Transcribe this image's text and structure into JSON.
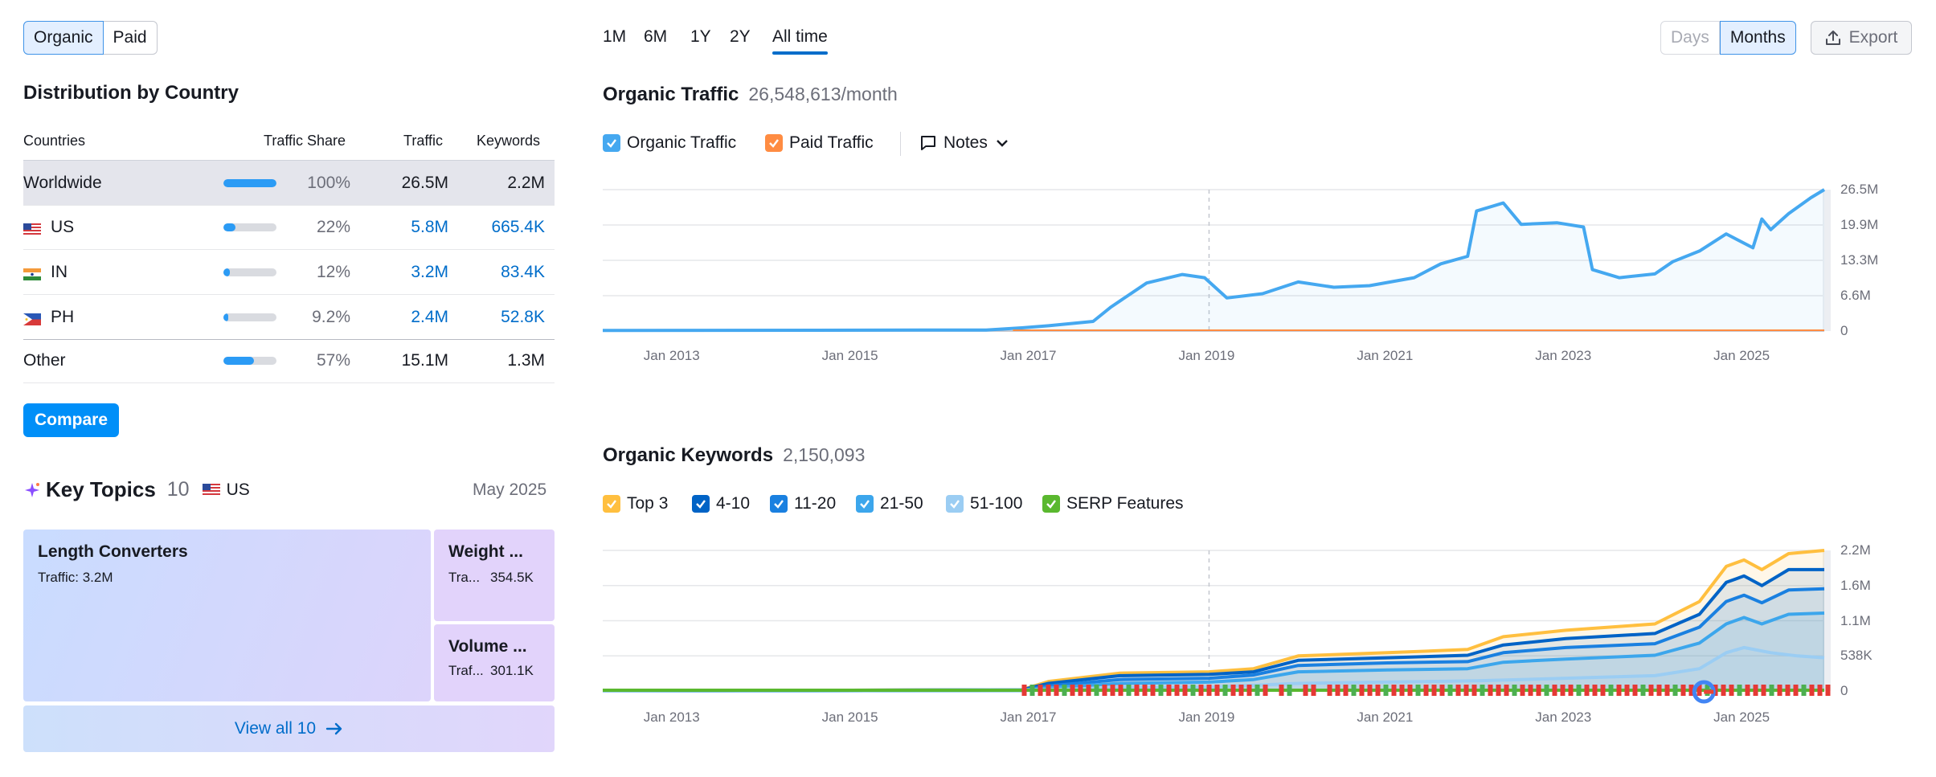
{
  "left": {
    "type_tabs": [
      "Organic",
      "Paid"
    ],
    "distribution_title": "Distribution by Country",
    "table_headers": {
      "countries": "Countries",
      "share": "Traffic Share",
      "traffic": "Traffic",
      "keywords": "Keywords"
    },
    "rows": [
      {
        "name": "Worldwide",
        "share": "100%",
        "share_value": 1.0,
        "traffic": "26.5M",
        "keywords": "2.2M"
      },
      {
        "name": "US",
        "share": "22%",
        "share_value": 0.22,
        "traffic": "5.8M",
        "keywords": "665.4K"
      },
      {
        "name": "IN",
        "share": "12%",
        "share_value": 0.12,
        "traffic": "3.2M",
        "keywords": "83.4K"
      },
      {
        "name": "PH",
        "share": "9.2%",
        "share_value": 0.092,
        "traffic": "2.4M",
        "keywords": "52.8K"
      },
      {
        "name": "Other",
        "share": "57%",
        "share_value": 0.57,
        "traffic": "15.1M",
        "keywords": "1.3M"
      }
    ],
    "compare_label": "Compare",
    "topics": {
      "title": "Key Topics",
      "count": "10",
      "country": "US",
      "date": "May 2025",
      "tiles": [
        {
          "title": "Length Converters",
          "sub": "Traffic: 3.2M"
        },
        {
          "title": "Weight ...",
          "sub_label": "Tra...",
          "sub_value": "354.5K"
        },
        {
          "title": "Volume ...",
          "sub_label": "Traf...",
          "sub_value": "301.1K"
        }
      ],
      "view_all": "View all 10"
    }
  },
  "right": {
    "ranges": [
      "1M",
      "6M",
      "1Y",
      "2Y",
      "All time"
    ],
    "selected_range": "All time",
    "granularity": [
      "Days",
      "Months"
    ],
    "export_label": "Export",
    "traffic_title": "Organic Traffic",
    "traffic_value": "26,548,613/month",
    "traffic_legend": [
      "Organic Traffic",
      "Paid Traffic"
    ],
    "notes_label": "Notes",
    "keywords_title": "Organic Keywords",
    "keywords_value": "2,150,093",
    "keywords_legend": [
      "Top 3",
      "4-10",
      "11-20",
      "21-50",
      "51-100",
      "SERP Features"
    ],
    "x_ticks": [
      "Jan 2013",
      "Jan 2015",
      "Jan 2017",
      "Jan 2019",
      "Jan 2021",
      "Jan 2023",
      "Jan 2025"
    ],
    "traffic_y_ticks": [
      "26.5M",
      "19.9M",
      "13.3M",
      "6.6M",
      "0"
    ],
    "keywords_y_ticks": [
      "2.2M",
      "1.6M",
      "1.1M",
      "538K",
      "0"
    ]
  },
  "colors": {
    "organic": "#45a8f0",
    "paid": "#ff8c42",
    "top3": "#ffbf3f",
    "k4_10": "#0063c6",
    "k11_20": "#1a80e0",
    "k21_50": "#3ca6ec",
    "k51_100": "#9bcdf3",
    "serp": "#5ab82f",
    "accent": "#008ff8"
  },
  "chart_data": [
    {
      "type": "line",
      "title": "Organic Traffic",
      "ylim": [
        0,
        26500000
      ],
      "series": [
        {
          "name": "Organic Traffic",
          "points": [
            [
              2012.2,
              0.1
            ],
            [
              2016.5,
              0.2
            ],
            [
              2016.9,
              0.6
            ],
            [
              2017.2,
              1.0
            ],
            [
              2017.7,
              1.8
            ],
            [
              2017.9,
              4.5
            ],
            [
              2018.3,
              9.0
            ],
            [
              2018.7,
              10.6
            ],
            [
              2018.95,
              10.0
            ],
            [
              2019.2,
              6.2
            ],
            [
              2019.6,
              7.0
            ],
            [
              2020.0,
              9.2
            ],
            [
              2020.4,
              8.2
            ],
            [
              2020.8,
              8.5
            ],
            [
              2021.3,
              10.0
            ],
            [
              2021.6,
              12.6
            ],
            [
              2021.9,
              14.0
            ],
            [
              2022.0,
              22.5
            ],
            [
              2022.3,
              24.0
            ],
            [
              2022.5,
              20.0
            ],
            [
              2022.9,
              20.3
            ],
            [
              2023.2,
              19.5
            ],
            [
              2023.3,
              11.5
            ],
            [
              2023.6,
              10.0
            ],
            [
              2024.0,
              10.7
            ],
            [
              2024.2,
              13.0
            ],
            [
              2024.5,
              15.0
            ],
            [
              2024.8,
              18.2
            ],
            [
              2025.1,
              15.6
            ],
            [
              2025.2,
              21.0
            ],
            [
              2025.3,
              19.0
            ],
            [
              2025.5,
              22.0
            ],
            [
              2025.75,
              25.0
            ],
            [
              2025.9,
              26.5
            ]
          ]
        },
        {
          "name": "Paid Traffic",
          "points": [
            [
              2012.2,
              0
            ],
            [
              2025.9,
              0
            ]
          ]
        }
      ]
    },
    {
      "type": "area",
      "title": "Organic Keywords",
      "ylim": [
        0,
        2200000
      ],
      "series": [
        {
          "name": "Top 3",
          "points": [
            [
              2012.2,
              0.0
            ],
            [
              2016.9,
              0.02
            ],
            [
              2017.2,
              0.15
            ],
            [
              2018.0,
              0.28
            ],
            [
              2019.0,
              0.3
            ],
            [
              2019.5,
              0.35
            ],
            [
              2020.0,
              0.55
            ],
            [
              2021.0,
              0.6
            ],
            [
              2021.9,
              0.65
            ],
            [
              2022.3,
              0.85
            ],
            [
              2023.0,
              0.95
            ],
            [
              2024.0,
              1.05
            ],
            [
              2024.5,
              1.4
            ],
            [
              2024.8,
              1.95
            ],
            [
              2025.0,
              2.05
            ],
            [
              2025.2,
              1.9
            ],
            [
              2025.5,
              2.15
            ],
            [
              2025.9,
              2.2
            ]
          ]
        },
        {
          "name": "4-10",
          "points": [
            [
              2012.2,
              0.0
            ],
            [
              2016.9,
              0.02
            ],
            [
              2017.2,
              0.12
            ],
            [
              2018.0,
              0.24
            ],
            [
              2019.0,
              0.26
            ],
            [
              2019.5,
              0.3
            ],
            [
              2020.0,
              0.48
            ],
            [
              2021.0,
              0.52
            ],
            [
              2021.9,
              0.56
            ],
            [
              2022.3,
              0.72
            ],
            [
              2023.0,
              0.82
            ],
            [
              2024.0,
              0.9
            ],
            [
              2024.5,
              1.2
            ],
            [
              2024.8,
              1.7
            ],
            [
              2025.0,
              1.8
            ],
            [
              2025.2,
              1.65
            ],
            [
              2025.5,
              1.9
            ],
            [
              2025.9,
              1.9
            ]
          ]
        },
        {
          "name": "11-20",
          "points": [
            [
              2012.2,
              0.0
            ],
            [
              2016.9,
              0.01
            ],
            [
              2017.2,
              0.08
            ],
            [
              2018.0,
              0.18
            ],
            [
              2019.0,
              0.2
            ],
            [
              2019.5,
              0.25
            ],
            [
              2020.0,
              0.4
            ],
            [
              2021.0,
              0.44
            ],
            [
              2021.9,
              0.46
            ],
            [
              2022.3,
              0.6
            ],
            [
              2023.0,
              0.68
            ],
            [
              2024.0,
              0.74
            ],
            [
              2024.5,
              1.0
            ],
            [
              2024.8,
              1.4
            ],
            [
              2025.0,
              1.5
            ],
            [
              2025.2,
              1.38
            ],
            [
              2025.5,
              1.58
            ],
            [
              2025.9,
              1.6
            ]
          ]
        },
        {
          "name": "21-50",
          "points": [
            [
              2012.2,
              0.0
            ],
            [
              2016.9,
              0.01
            ],
            [
              2017.2,
              0.05
            ],
            [
              2018.0,
              0.12
            ],
            [
              2019.0,
              0.14
            ],
            [
              2019.5,
              0.18
            ],
            [
              2020.0,
              0.3
            ],
            [
              2021.0,
              0.33
            ],
            [
              2021.9,
              0.35
            ],
            [
              2022.3,
              0.45
            ],
            [
              2023.0,
              0.5
            ],
            [
              2024.0,
              0.56
            ],
            [
              2024.5,
              0.75
            ],
            [
              2024.8,
              1.05
            ],
            [
              2025.0,
              1.15
            ],
            [
              2025.2,
              1.05
            ],
            [
              2025.5,
              1.2
            ],
            [
              2025.9,
              1.22
            ]
          ]
        },
        {
          "name": "51-100",
          "points": [
            [
              2012.2,
              0.0
            ],
            [
              2017.2,
              0.02
            ],
            [
              2018.0,
              0.05
            ],
            [
              2019.0,
              0.06
            ],
            [
              2020.0,
              0.12
            ],
            [
              2021.0,
              0.14
            ],
            [
              2022.0,
              0.16
            ],
            [
              2023.0,
              0.2
            ],
            [
              2024.0,
              0.24
            ],
            [
              2024.5,
              0.35
            ],
            [
              2024.8,
              0.6
            ],
            [
              2025.0,
              0.68
            ],
            [
              2025.3,
              0.6
            ],
            [
              2025.6,
              0.55
            ],
            [
              2025.9,
              0.52
            ]
          ]
        },
        {
          "name": "SERP Features",
          "points": [
            [
              2012.2,
              0.0
            ],
            [
              2025.9,
              0.0
            ]
          ]
        }
      ]
    }
  ]
}
